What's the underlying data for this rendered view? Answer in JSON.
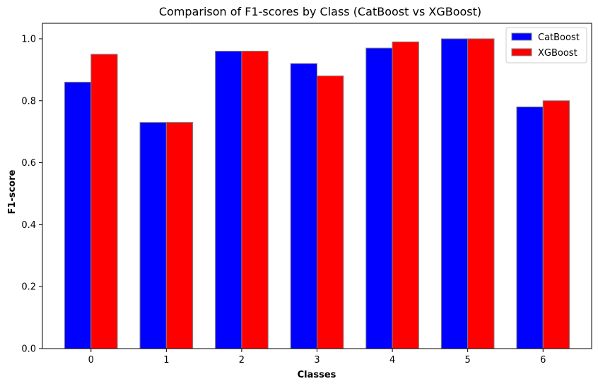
{
  "chart_data": {
    "type": "bar",
    "title": "Comparison of F1-scores by Class (CatBoost vs XGBoost)",
    "xlabel": "Classes",
    "ylabel": "F1-score",
    "categories": [
      "0",
      "1",
      "2",
      "3",
      "4",
      "5",
      "6"
    ],
    "series": [
      {
        "name": "CatBoost",
        "color": "#0000ff",
        "values": [
          0.86,
          0.73,
          0.96,
          0.92,
          0.97,
          1.0,
          0.78
        ]
      },
      {
        "name": "XGBoost",
        "color": "#ff0000",
        "values": [
          0.95,
          0.73,
          0.96,
          0.88,
          0.99,
          1.0,
          0.8
        ]
      }
    ],
    "ylim": [
      0,
      1.05
    ],
    "yticks": [
      "0.0",
      "0.2",
      "0.4",
      "0.6",
      "0.8",
      "1.0"
    ],
    "bar_edge_color": "#808080",
    "grid": false,
    "legend_position": "top-right"
  }
}
